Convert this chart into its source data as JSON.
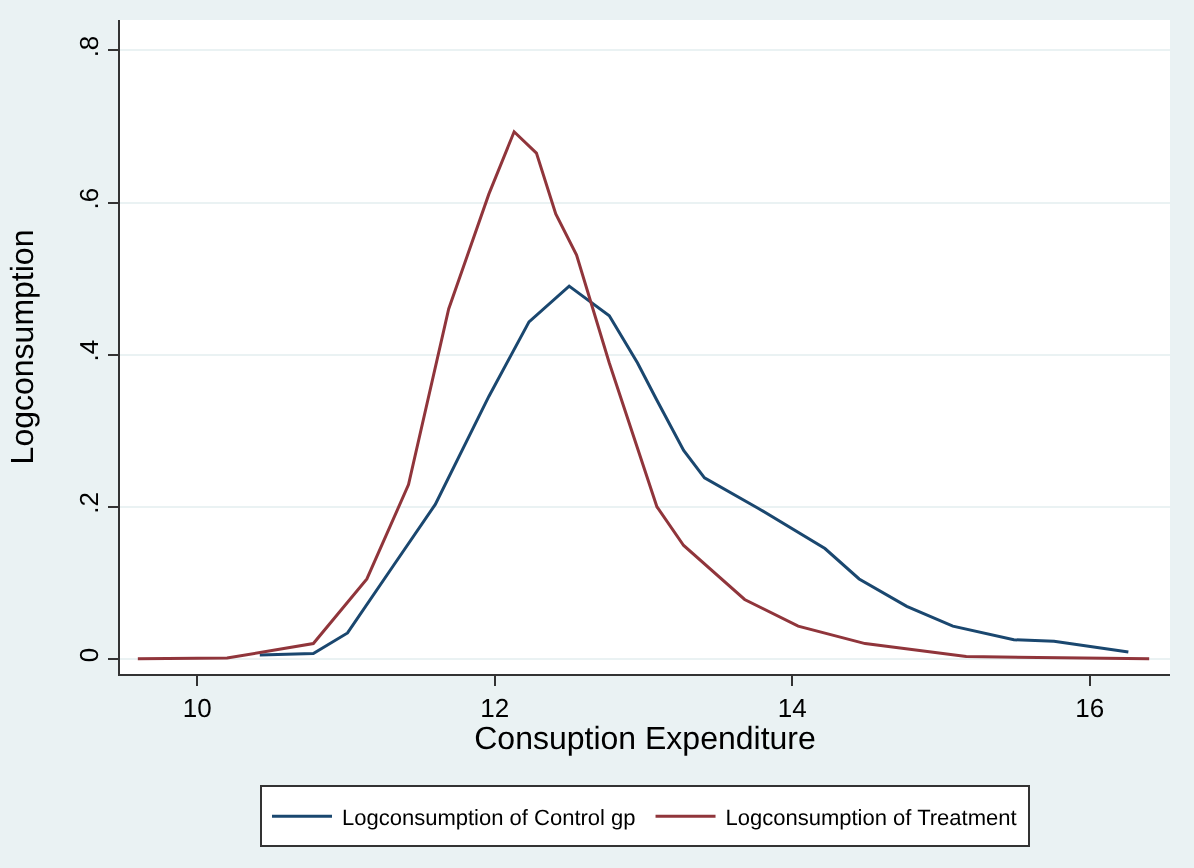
{
  "chart_data": {
    "type": "line",
    "xlabel": "Consuption Expenditure",
    "ylabel": "Logconsumption",
    "xlim": [
      9.48,
      16.54
    ],
    "xticks": [
      10,
      12,
      14,
      16
    ],
    "ylim": [
      -0.02,
      0.84
    ],
    "yticks": [
      {
        "value": 0,
        "label": "0"
      },
      {
        "value": 0.2,
        "label": ".2"
      },
      {
        "value": 0.4,
        "label": ".4"
      },
      {
        "value": 0.6,
        "label": ".6"
      },
      {
        "value": 0.8,
        "label": ".8"
      }
    ],
    "grid": "y",
    "legend": "bottom",
    "marker": "none",
    "line_style": "solid",
    "series": [
      {
        "name": "Logconsumption of Control gp",
        "color": "#1a476f",
        "x": [
          10.42,
          10.78,
          11.01,
          11.32,
          11.6,
          11.96,
          12.23,
          12.5,
          12.77,
          12.96,
          13.09,
          13.27,
          13.41,
          13.77,
          14.22,
          14.45,
          14.77,
          15.08,
          15.49,
          15.76,
          16.26
        ],
        "values": [
          0.005,
          0.007,
          0.034,
          0.123,
          0.203,
          0.345,
          0.443,
          0.49,
          0.451,
          0.389,
          0.34,
          0.274,
          0.238,
          0.198,
          0.145,
          0.105,
          0.069,
          0.043,
          0.025,
          0.023,
          0.009
        ]
      },
      {
        "name": "Logconsumption of Treatment",
        "color": "#90353b",
        "x": [
          9.6,
          10.2,
          10.78,
          11.14,
          11.42,
          11.69,
          11.96,
          12.13,
          12.28,
          12.41,
          12.55,
          12.77,
          13.09,
          13.27,
          13.68,
          14.04,
          14.49,
          15.17,
          16.4
        ],
        "values": [
          0,
          0.001,
          0.02,
          0.105,
          0.229,
          0.46,
          0.611,
          0.693,
          0.665,
          0.585,
          0.531,
          0.389,
          0.2,
          0.149,
          0.078,
          0.043,
          0.02,
          0.003,
          0
        ]
      }
    ]
  }
}
